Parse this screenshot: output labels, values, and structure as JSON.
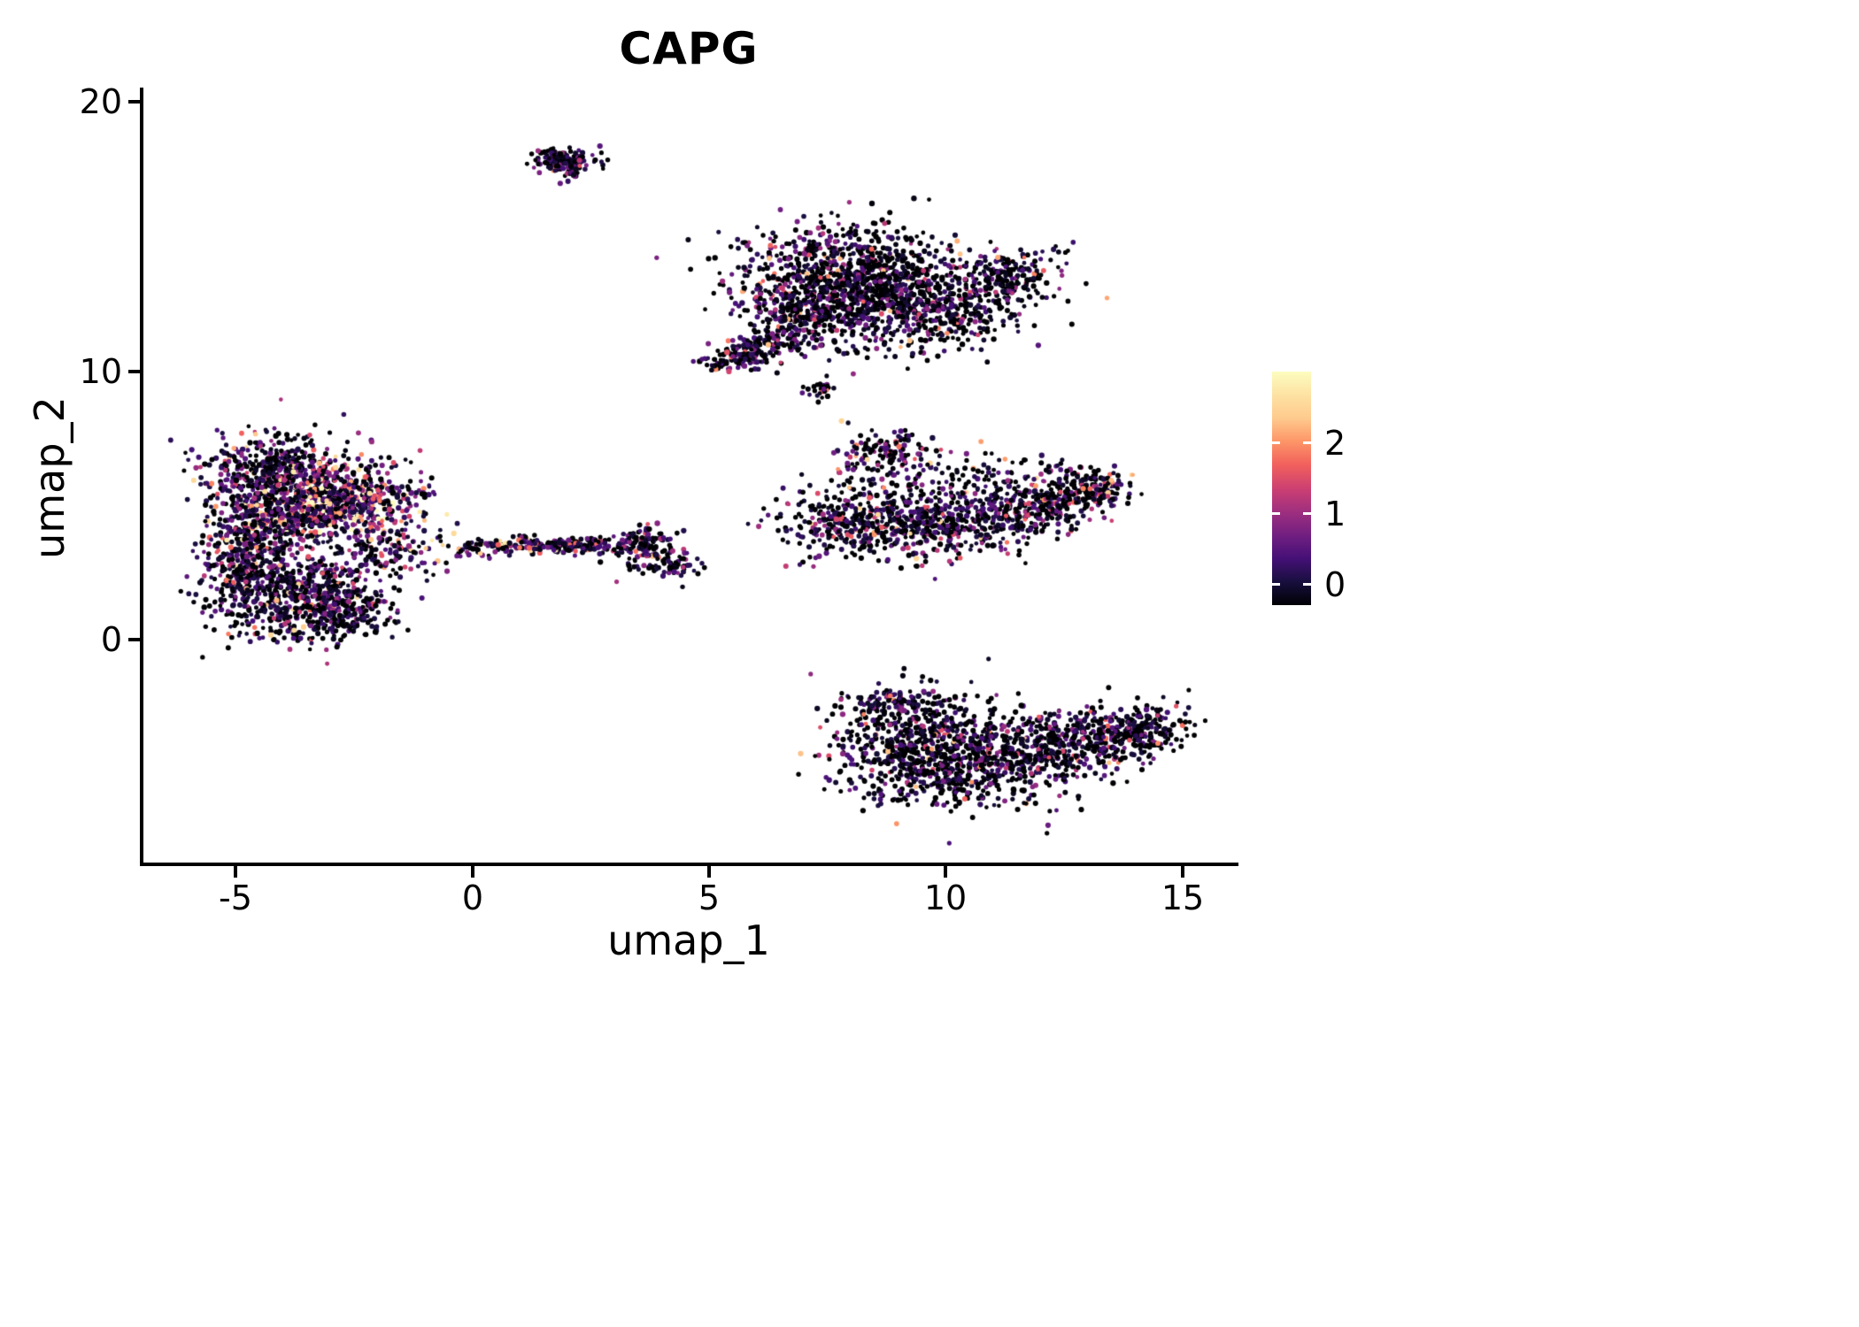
{
  "chart_data": {
    "type": "scatter",
    "title": "CAPG",
    "xlabel": "umap_1",
    "ylabel": "umap_2",
    "xlim": [
      -7,
      16.2
    ],
    "ylim": [
      -8.5,
      20.8
    ],
    "grid": false,
    "background": "#ffffff",
    "x_ticks": [
      {
        "value": -5,
        "label": "-5"
      },
      {
        "value": 0,
        "label": "0"
      },
      {
        "value": 5,
        "label": "5"
      },
      {
        "value": 10,
        "label": "10"
      },
      {
        "value": 15,
        "label": "15"
      }
    ],
    "y_ticks": [
      {
        "value": 20,
        "label": "20"
      },
      {
        "value": 10,
        "label": "10"
      },
      {
        "value": 0,
        "label": "0"
      }
    ],
    "colorbar": {
      "position": "right",
      "vmin": 0,
      "vmax": 2.8,
      "ticks": [
        {
          "value": 0,
          "label": "0"
        },
        {
          "value": 1,
          "label": "1"
        },
        {
          "value": 2,
          "label": "2"
        }
      ],
      "colormap": "magma",
      "stops": [
        "#000004",
        "#180f3e",
        "#451077",
        "#721f81",
        "#9f2f7f",
        "#cd4071",
        "#f1605d",
        "#fd9567",
        "#feca8d",
        "#fde2a3",
        "#fcfdbf"
      ]
    },
    "clusters": [
      {
        "name": "top-small-cluster",
        "blobs": [
          {
            "cx": 1.9,
            "cy": 17.9,
            "sx": 0.34,
            "sy": 0.18,
            "rot": 0,
            "n": 150,
            "p0": 0.3,
            "vmean": 0.6,
            "vmax": 2.0
          },
          {
            "cx": 2.05,
            "cy": 17.45,
            "sx": 0.16,
            "sy": 0.22,
            "rot": 0,
            "n": 35,
            "p0": 0.3,
            "vmean": 0.6,
            "vmax": 2.0
          }
        ]
      },
      {
        "name": "upper-right-cluster",
        "blobs": [
          {
            "cx": 8.0,
            "cy": 13.6,
            "sx": 1.15,
            "sy": 0.95,
            "rot": 0,
            "n": 850,
            "p0": 0.38,
            "vmean": 0.5,
            "vmax": 2.2
          },
          {
            "cx": 9.4,
            "cy": 12.3,
            "sx": 1.0,
            "sy": 0.8,
            "rot": 0,
            "n": 500,
            "p0": 0.38,
            "vmean": 0.5,
            "vmax": 2.2
          },
          {
            "cx": 7.0,
            "cy": 12.2,
            "sx": 0.6,
            "sy": 0.7,
            "rot": 0,
            "n": 260,
            "p0": 0.35,
            "vmean": 0.55,
            "vmax": 2.2
          },
          {
            "cx": 11.2,
            "cy": 13.5,
            "sx": 0.65,
            "sy": 0.65,
            "rot": 0,
            "n": 220,
            "p0": 0.4,
            "vmean": 0.5,
            "vmax": 2.2
          },
          {
            "cx": 6.2,
            "cy": 10.9,
            "sx": 0.55,
            "sy": 0.3,
            "rot": 0.5,
            "n": 160,
            "p0": 0.3,
            "vmean": 0.6,
            "vmax": 2.2
          },
          {
            "cx": 5.5,
            "cy": 10.35,
            "sx": 0.3,
            "sy": 0.18,
            "rot": 0.2,
            "n": 70,
            "p0": 0.3,
            "vmean": 0.6,
            "vmax": 2.2
          }
        ]
      },
      {
        "name": "tiny-mid-cluster",
        "blobs": [
          {
            "cx": 7.3,
            "cy": 9.35,
            "sx": 0.16,
            "sy": 0.18,
            "rot": 0,
            "n": 28,
            "p0": 0.4,
            "vmean": 0.5,
            "vmax": 1.8
          }
        ]
      },
      {
        "name": "mid-right-cluster",
        "blobs": [
          {
            "cx": 8.8,
            "cy": 6.9,
            "sx": 0.5,
            "sy": 0.5,
            "rot": 0,
            "n": 150,
            "p0": 0.3,
            "vmean": 0.6,
            "vmax": 2.4
          },
          {
            "cx": 8.2,
            "cy": 4.4,
            "sx": 0.85,
            "sy": 0.7,
            "rot": 0,
            "n": 350,
            "p0": 0.35,
            "vmean": 0.55,
            "vmax": 2.4
          },
          {
            "cx": 10.0,
            "cy": 4.3,
            "sx": 0.95,
            "sy": 0.65,
            "rot": 0,
            "n": 360,
            "p0": 0.35,
            "vmean": 0.55,
            "vmax": 2.4
          },
          {
            "cx": 11.9,
            "cy": 4.9,
            "sx": 0.9,
            "sy": 0.55,
            "rot": 0.35,
            "n": 300,
            "p0": 0.35,
            "vmean": 0.6,
            "vmax": 2.4
          },
          {
            "cx": 13.1,
            "cy": 5.6,
            "sx": 0.4,
            "sy": 0.35,
            "rot": 0.3,
            "n": 120,
            "p0": 0.3,
            "vmean": 0.7,
            "vmax": 2.4
          },
          {
            "cx": 10.8,
            "cy": 6.1,
            "sx": 1.1,
            "sy": 0.45,
            "rot": 0.1,
            "n": 90,
            "p0": 0.45,
            "vmean": 0.5,
            "vmax": 2.0
          }
        ]
      },
      {
        "name": "bottom-right-cluster",
        "blobs": [
          {
            "cx": 9.3,
            "cy": -4.0,
            "sx": 0.85,
            "sy": 1.05,
            "rot": 0,
            "n": 520,
            "p0": 0.42,
            "vmean": 0.5,
            "vmax": 2.2
          },
          {
            "cx": 10.8,
            "cy": -4.6,
            "sx": 1.0,
            "sy": 0.85,
            "rot": 0,
            "n": 450,
            "p0": 0.42,
            "vmean": 0.5,
            "vmax": 2.2
          },
          {
            "cx": 12.3,
            "cy": -4.0,
            "sx": 0.95,
            "sy": 0.65,
            "rot": 0.25,
            "n": 360,
            "p0": 0.42,
            "vmean": 0.5,
            "vmax": 2.2
          },
          {
            "cx": 13.9,
            "cy": -3.5,
            "sx": 0.6,
            "sy": 0.45,
            "rot": 0.3,
            "n": 250,
            "p0": 0.45,
            "vmean": 0.45,
            "vmax": 2.0
          },
          {
            "cx": 8.9,
            "cy": -2.4,
            "sx": 0.55,
            "sy": 0.3,
            "rot": 0,
            "n": 90,
            "p0": 0.4,
            "vmean": 0.5,
            "vmax": 2.0
          }
        ]
      },
      {
        "name": "left-large-cluster",
        "blobs": [
          {
            "cx": -4.2,
            "cy": 6.1,
            "sx": 0.8,
            "sy": 0.85,
            "rot": 0,
            "n": 430,
            "p0": 0.3,
            "vmean": 0.6,
            "vmax": 2.4
          },
          {
            "cx": -3.1,
            "cy": 5.4,
            "sx": 0.8,
            "sy": 0.75,
            "rot": 0,
            "n": 380,
            "p0": 0.2,
            "vmean": 0.8,
            "vmax": 2.6
          },
          {
            "cx": -3.3,
            "cy": 4.6,
            "sx": 0.75,
            "sy": 0.55,
            "rot": 0.2,
            "n": 260,
            "p0": 0.08,
            "vmean": 1.1,
            "vmax": 2.8
          },
          {
            "cx": -2.4,
            "cy": 5.2,
            "sx": 0.5,
            "sy": 0.5,
            "rot": 0,
            "n": 120,
            "p0": 0.08,
            "vmean": 1.3,
            "vmax": 2.8
          },
          {
            "cx": -4.6,
            "cy": 4.1,
            "sx": 0.55,
            "sy": 0.65,
            "rot": 0,
            "n": 260,
            "p0": 0.25,
            "vmean": 0.7,
            "vmax": 2.6
          },
          {
            "cx": -3.8,
            "cy": 1.6,
            "sx": 0.9,
            "sy": 0.85,
            "rot": 0,
            "n": 650,
            "p0": 0.35,
            "vmean": 0.55,
            "vmax": 2.4
          },
          {
            "cx": -4.9,
            "cy": 2.5,
            "sx": 0.4,
            "sy": 0.6,
            "rot": 0,
            "n": 140,
            "p0": 0.35,
            "vmean": 0.55,
            "vmax": 2.2
          },
          {
            "cx": -2.6,
            "cy": 0.9,
            "sx": 0.5,
            "sy": 0.5,
            "rot": 0,
            "n": 140,
            "p0": 0.35,
            "vmean": 0.5,
            "vmax": 2.2
          },
          {
            "cx": -1.8,
            "cy": 3.3,
            "sx": 0.55,
            "sy": 0.5,
            "rot": 0,
            "n": 130,
            "p0": 0.2,
            "vmean": 0.8,
            "vmax": 2.6
          },
          {
            "cx": -1.3,
            "cy": 5.2,
            "sx": 0.45,
            "sy": 0.9,
            "rot": 0,
            "n": 55,
            "p0": 0.2,
            "vmean": 1.0,
            "vmax": 2.6
          }
        ]
      },
      {
        "name": "mid-strip-cluster",
        "blobs": [
          {
            "cx": 1.0,
            "cy": 3.5,
            "sx": 0.45,
            "sy": 0.16,
            "rot": 0,
            "n": 90,
            "p0": 0.12,
            "vmean": 1.0,
            "vmax": 2.6
          },
          {
            "cx": 2.2,
            "cy": 3.5,
            "sx": 0.5,
            "sy": 0.15,
            "rot": 0,
            "n": 110,
            "p0": 0.3,
            "vmean": 0.6,
            "vmax": 2.2
          },
          {
            "cx": 0.1,
            "cy": 3.4,
            "sx": 0.35,
            "sy": 0.18,
            "rot": 0,
            "n": 30,
            "p0": 0.25,
            "vmean": 0.8,
            "vmax": 2.4
          }
        ]
      },
      {
        "name": "small-mid-cluster",
        "blobs": [
          {
            "cx": 3.6,
            "cy": 3.5,
            "sx": 0.3,
            "sy": 0.4,
            "rot": 0,
            "n": 140,
            "p0": 0.3,
            "vmean": 0.6,
            "vmax": 2.2
          },
          {
            "cx": 4.3,
            "cy": 2.8,
            "sx": 0.25,
            "sy": 0.25,
            "rot": 0,
            "n": 50,
            "p0": 0.35,
            "vmean": 0.5,
            "vmax": 2.0
          }
        ]
      }
    ]
  }
}
